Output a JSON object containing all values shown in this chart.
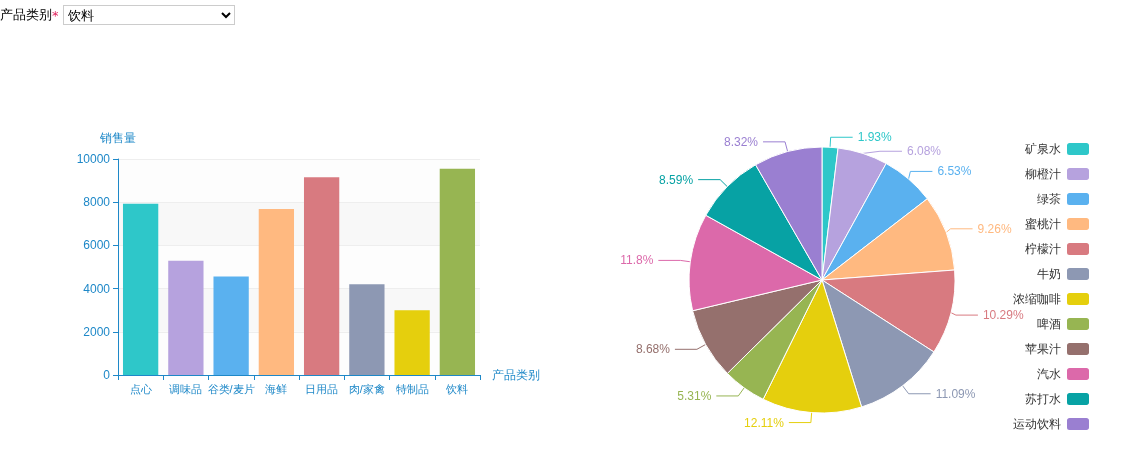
{
  "chart_data": [
    {
      "type": "other",
      "annotations": [
        "产品类别",
        "*",
        "饮料"
      ]
    },
    {
      "type": "bar",
      "xlabel": "产品类别",
      "ylabel": "销售量",
      "categories": [
        "点心",
        "调味品",
        "谷类/麦片",
        "海鲜",
        "日用品",
        "肉/家禽",
        "特制品",
        "饮料"
      ],
      "values": [
        7930,
        5290,
        4560,
        7680,
        9150,
        4200,
        3000,
        9550
      ],
      "colors": [
        "#2ec7c9",
        "#b6a2de",
        "#5ab1ef",
        "#ffb980",
        "#d87a80",
        "#8d98b3",
        "#e5cf0d",
        "#97b552"
      ],
      "ylim": [
        0,
        10000
      ],
      "yticks": [
        0,
        2000,
        4000,
        6000,
        8000,
        10000
      ],
      "grid": "y"
    },
    {
      "type": "pie",
      "legend": "right",
      "categories": [
        "矿泉水",
        "柳橙汁",
        "绿茶",
        "蜜桃汁",
        "柠檬汁",
        "牛奶",
        "浓缩咖啡",
        "啤酒",
        "苹果汁",
        "汽水",
        "苏打水",
        "运动饮料"
      ],
      "values": [
        1.93,
        6.08,
        6.53,
        9.26,
        10.29,
        11.09,
        12.11,
        5.31,
        8.68,
        11.8,
        8.59,
        8.32
      ],
      "value_labels": [
        "1.93%",
        "6.08%",
        "6.53%",
        "9.26%",
        "10.29%",
        "11.09%",
        "12.11%",
        "5.31%",
        "8.68%",
        "11.8%",
        "8.59%",
        "8.32%"
      ],
      "colors": [
        "#2ec7c9",
        "#b6a2de",
        "#5ab1ef",
        "#ffb980",
        "#d87a80",
        "#8d98b3",
        "#e5cf0d",
        "#97b552",
        "#95706d",
        "#dc69aa",
        "#07a2a4",
        "#9a7fd1"
      ]
    }
  ]
}
